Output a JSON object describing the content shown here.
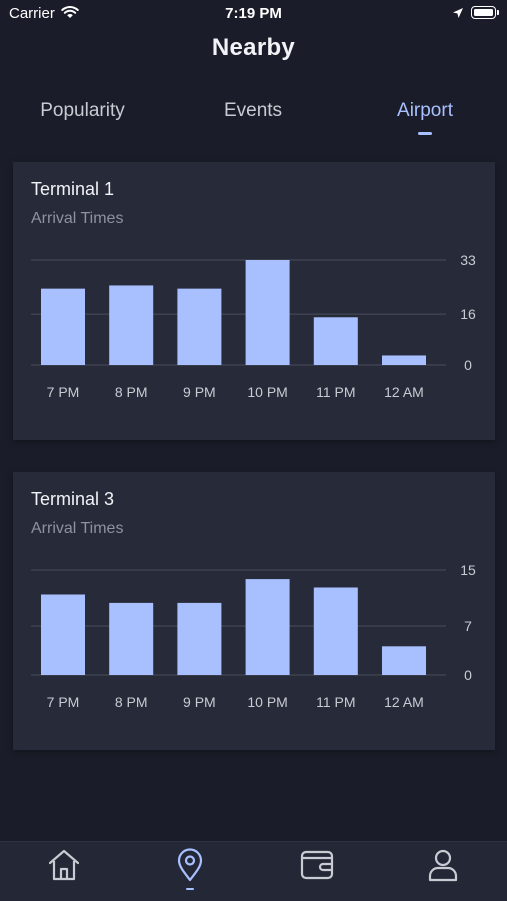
{
  "status_bar": {
    "carrier": "Carrier",
    "time": "7:19 PM",
    "battery_level": 1.0
  },
  "header": {
    "title": "Nearby"
  },
  "tabs": [
    {
      "label": "Popularity",
      "active": false
    },
    {
      "label": "Events",
      "active": false
    },
    {
      "label": "Airport",
      "active": true
    }
  ],
  "cards": [
    {
      "title": "Terminal 1",
      "subtitle": "Arrival Times"
    },
    {
      "title": "Terminal 3",
      "subtitle": "Arrival Times"
    }
  ],
  "chart_data": [
    {
      "type": "bar",
      "title": "Terminal 1",
      "subtitle": "Arrival Times",
      "categories": [
        "7 PM",
        "8 PM",
        "9 PM",
        "10 PM",
        "11 PM",
        "12 AM"
      ],
      "values": [
        24,
        25,
        24,
        33,
        15,
        3
      ],
      "y_ticks": [
        "33",
        "16",
        "0"
      ],
      "ylim": [
        0,
        33
      ],
      "grid": true,
      "bar_color": "#a8c0ff"
    },
    {
      "type": "bar",
      "title": "Terminal 3",
      "subtitle": "Arrival Times",
      "categories": [
        "7 PM",
        "8 PM",
        "9 PM",
        "10 PM",
        "11 PM",
        "12 AM"
      ],
      "values": [
        11.5,
        10.3,
        10.3,
        13.7,
        12.5,
        4.1
      ],
      "y_ticks": [
        "15",
        "7",
        "0"
      ],
      "ylim": [
        0,
        15
      ],
      "grid": true,
      "bar_color": "#a8c0ff"
    }
  ],
  "tab_bar": {
    "items": [
      {
        "icon": "home-icon",
        "active": false
      },
      {
        "icon": "location-pin-icon",
        "active": true
      },
      {
        "icon": "wallet-icon",
        "active": false
      },
      {
        "icon": "profile-icon",
        "active": false
      }
    ]
  },
  "colors": {
    "background": "#1a1d29",
    "card": "#272b39",
    "accent": "#a8c0ff",
    "gridline": "#4a4e5c"
  }
}
